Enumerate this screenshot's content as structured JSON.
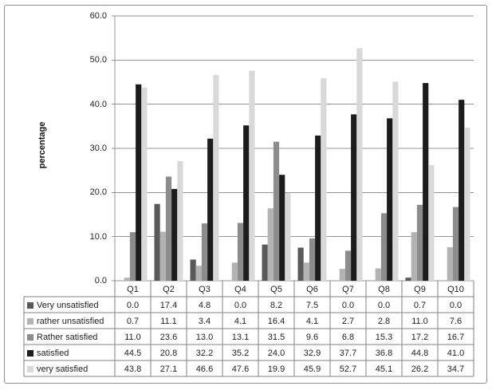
{
  "chart_data": {
    "type": "bar",
    "title": "",
    "xlabel": "",
    "ylabel": "percentage",
    "ylim": [
      0,
      60
    ],
    "ytick_step": 10,
    "ytick_labels": [
      "0.0",
      "10.0",
      "20.0",
      "30.0",
      "40.0",
      "50.0",
      "60.0"
    ],
    "grid": true,
    "legend_position": "data-table-below-chart",
    "categories": [
      "Q1",
      "Q2",
      "Q3",
      "Q4",
      "Q5",
      "Q6",
      "Q7",
      "Q8",
      "Q9",
      "Q10"
    ],
    "series": [
      {
        "name": "Very unsatisfied",
        "color": "#595959",
        "values": [
          0.0,
          17.4,
          4.8,
          0.0,
          8.2,
          7.5,
          0.0,
          0.0,
          0.7,
          0.0
        ]
      },
      {
        "name": "rather unsatisfied",
        "color": "#b3b3b3",
        "values": [
          0.7,
          11.1,
          3.4,
          4.1,
          16.4,
          4.1,
          2.7,
          2.8,
          11.0,
          7.6
        ]
      },
      {
        "name": "Rather satisfied",
        "color": "#8c8c8c",
        "values": [
          11.0,
          23.6,
          13.0,
          13.1,
          31.5,
          9.6,
          6.8,
          15.3,
          17.2,
          16.7
        ]
      },
      {
        "name": "satisfied",
        "color": "#1c1c1c",
        "values": [
          44.5,
          20.8,
          32.2,
          35.2,
          24.0,
          32.9,
          37.7,
          36.8,
          44.8,
          41.0
        ]
      },
      {
        "name": "very satisfied",
        "color": "#d9d9d9",
        "values": [
          43.8,
          27.1,
          46.6,
          47.6,
          19.9,
          45.9,
          52.7,
          45.1,
          26.2,
          34.7
        ]
      }
    ]
  },
  "colors": {
    "gridline": "#949494",
    "axis_line": "#949494",
    "table_border": "#808080",
    "outer_border": "#8f8f8f",
    "text": "#1f1f1f"
  }
}
